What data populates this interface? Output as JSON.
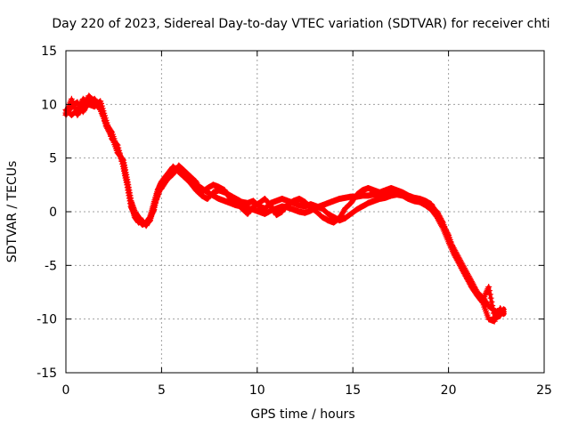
{
  "chart_data": {
    "type": "scatter",
    "title": "Day 220 of 2023, Sidereal Day-to-day VTEC variation (SDTVAR) for receiver chti",
    "xlabel": "GPS time / hours",
    "ylabel": "SDTVAR / TECUs",
    "xlim": [
      0,
      25
    ],
    "ylim": [
      -15,
      15
    ],
    "xticks": [
      0,
      5,
      10,
      15,
      20,
      25
    ],
    "yticks": [
      -15,
      -10,
      -5,
      0,
      5,
      10,
      15
    ],
    "grid": true,
    "marker": "+",
    "color": "#ff0000",
    "series": [
      {
        "name": "SDTVAR",
        "x": [
          0.0,
          0.3,
          0.6,
          0.9,
          1.2,
          1.5,
          1.8,
          2.1,
          2.4,
          2.7,
          3.0,
          3.2,
          3.4,
          3.6,
          3.8,
          4.0,
          4.2,
          4.4,
          4.6,
          4.8,
          5.0,
          5.3,
          5.6,
          5.9,
          6.2,
          6.5,
          6.8,
          7.1,
          7.4,
          7.7,
          8.0,
          8.3,
          8.6,
          8.9,
          9.2,
          9.5,
          9.8,
          10.1,
          10.4,
          10.7,
          11.0,
          11.3,
          11.6,
          11.9,
          12.2,
          12.5,
          12.8,
          13.1,
          13.4,
          13.7,
          14.0,
          14.3,
          14.6,
          14.9,
          15.2,
          15.5,
          15.8,
          16.1,
          16.4,
          16.7,
          17.0,
          17.3,
          17.6,
          17.9,
          18.2,
          18.5,
          18.8,
          19.1,
          19.4,
          19.7,
          20.0,
          20.3,
          20.6,
          20.9,
          21.2,
          21.5,
          21.8,
          22.1,
          22.4,
          22.7,
          22.9
        ],
        "y": [
          9.0,
          9.8,
          10.2,
          9.3,
          10.2,
          10.5,
          9.8,
          8.0,
          7.0,
          5.5,
          4.8,
          3.0,
          1.0,
          0.0,
          -0.5,
          -1.0,
          -1.2,
          -0.8,
          0.5,
          1.5,
          2.5,
          3.2,
          3.8,
          4.0,
          3.5,
          3.0,
          2.5,
          2.2,
          1.8,
          1.5,
          1.2,
          1.0,
          0.8,
          0.6,
          0.5,
          0.3,
          0.2,
          0.0,
          -0.2,
          0.1,
          0.3,
          0.5,
          0.4,
          0.2,
          0.0,
          -0.1,
          0.1,
          0.4,
          0.6,
          0.8,
          1.0,
          1.2,
          1.3,
          1.4,
          1.4,
          1.5,
          1.5,
          1.6,
          1.7,
          1.8,
          1.8,
          1.7,
          1.6,
          1.4,
          1.2,
          1.0,
          0.8,
          0.5,
          0.0,
          -1.0,
          -2.5,
          -3.5,
          -4.5,
          -5.5,
          -6.5,
          -7.5,
          -8.0,
          -8.8,
          -9.2,
          -9.5,
          -9.3
        ],
        "y2": [
          9.5,
          9.0,
          9.5,
          10.5,
          10.0,
          9.8,
          10.3,
          8.5,
          6.8,
          6.2,
          4.2,
          2.5,
          0.5,
          -0.3,
          -0.8,
          -1.2,
          -1.0,
          -0.5,
          0.8,
          2.0,
          2.8,
          3.5,
          4.2,
          3.7,
          3.2,
          2.7,
          2.0,
          1.5,
          1.2,
          1.8,
          2.0,
          1.8,
          1.5,
          1.2,
          0.9,
          0.8,
          1.0,
          0.5,
          0.3,
          0.8,
          1.0,
          1.2,
          1.0,
          0.8,
          0.6,
          0.5,
          0.7,
          0.5,
          0.3,
          -0.2,
          -0.5,
          -0.8,
          -0.6,
          -0.2,
          0.2,
          0.5,
          0.8,
          1.0,
          1.2,
          1.3,
          1.5,
          1.6,
          1.5,
          1.2,
          1.0,
          0.9,
          0.6,
          0.2,
          -0.5,
          -1.5,
          -2.8,
          -4.0,
          -5.0,
          -6.0,
          -7.0,
          -7.8,
          -8.5,
          -10.0,
          -10.2,
          -9.0,
          -9.6
        ],
        "y3": [
          9.2,
          10.5,
          9.0,
          9.8,
          10.8,
          10.2,
          9.5,
          8.2,
          7.4,
          5.8,
          4.5,
          2.8,
          0.8,
          -0.5,
          -1.0,
          -0.8,
          -1.3,
          -0.6,
          0.2,
          1.8,
          2.2,
          3.0,
          3.5,
          4.3,
          3.8,
          3.3,
          2.8,
          1.8,
          2.2,
          2.5,
          2.3,
          2.0,
          1.2,
          0.8,
          0.3,
          -0.2,
          0.5,
          0.8,
          1.2,
          0.6,
          -0.3,
          0.0,
          0.7,
          1.0,
          1.2,
          0.9,
          0.4,
          0.0,
          -0.5,
          -0.8,
          -1.0,
          -0.6,
          0.3,
          0.8,
          1.6,
          2.0,
          2.2,
          2.0,
          1.8,
          2.0,
          2.2,
          2.0,
          1.8,
          1.5,
          1.3,
          1.2,
          1.0,
          0.7,
          -0.2,
          -1.2,
          -2.2,
          -3.8,
          -4.8,
          -5.8,
          -6.8,
          -7.6,
          -8.2,
          -7.0,
          -9.8,
          -9.7,
          -9.0
        ]
      }
    ]
  }
}
